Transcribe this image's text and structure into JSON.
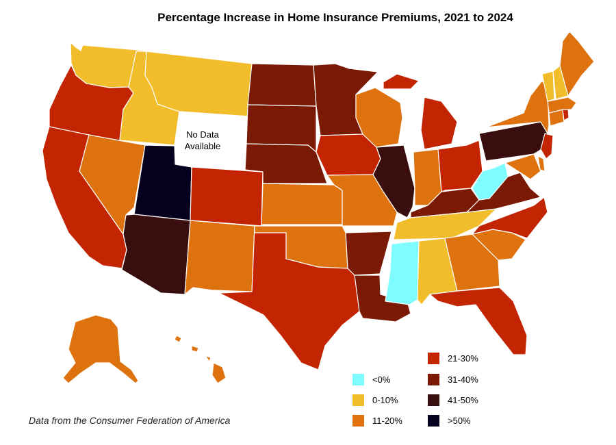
{
  "title": "Percentage Increase in Home Insurance Premiums, 2021 to 2024",
  "no_data_line1": "No Data",
  "no_data_line2": "Available",
  "source": "Data from the Consumer Federation of America",
  "colors": {
    "neg": "#7ffcff",
    "c0_10": "#f2bd2b",
    "c11_20": "#de720f",
    "c21_30": "#c32401",
    "c31_40": "#7b1a04",
    "c41_50": "#3a0e0e",
    "c50": "#04001e",
    "nodata": "#ffffff"
  },
  "legend": [
    {
      "label": "<0%",
      "color": "#7ffcff"
    },
    {
      "label": "0-10%",
      "color": "#f2bd2b"
    },
    {
      "label": "11-20%",
      "color": "#de720f"
    },
    {
      "label": "21-30%",
      "color": "#c32401"
    },
    {
      "label": "31-40%",
      "color": "#7b1a04"
    },
    {
      "label": "41-50%",
      "color": "#3a0e0e"
    },
    {
      "label": ">50%",
      "color": "#04001e"
    }
  ],
  "states": {
    "WA": "0-10%",
    "OR": "21-30%",
    "CA": "21-30%",
    "NV": "11-20%",
    "ID": "0-10%",
    "MT": "0-10%",
    "WY": "No Data Available",
    "UT": ">50%",
    "AZ": "41-50%",
    "CO": "21-30%",
    "NM": "11-20%",
    "TX": "21-30%",
    "ND": "31-40%",
    "SD": "31-40%",
    "NE": "31-40%",
    "KS": "11-20%",
    "OK": "11-20%",
    "MN": "31-40%",
    "IA": "21-30%",
    "MO": "11-20%",
    "AR": "31-40%",
    "LA": "31-40%",
    "WI": "11-20%",
    "IL": "41-50%",
    "MI": "21-30%",
    "IN": "11-20%",
    "OH": "21-30%",
    "KY": "31-40%",
    "TN": "0-10%",
    "MS": "<0%",
    "AL": "0-10%",
    "GA": "11-20%",
    "FL": "21-30%",
    "SC": "11-20%",
    "NC": "21-30%",
    "VA": "31-40%",
    "WV": "<0%",
    "PA": "41-50%",
    "NY": "11-20%",
    "NJ": "21-30%",
    "DE": "11-20%",
    "MD": "11-20%",
    "CT": "11-20%",
    "RI": "21-30%",
    "MA": "11-20%",
    "VT": "0-10%",
    "NH": "0-10%",
    "ME": "11-20%",
    "AK": "11-20%",
    "HI": "11-20%"
  }
}
